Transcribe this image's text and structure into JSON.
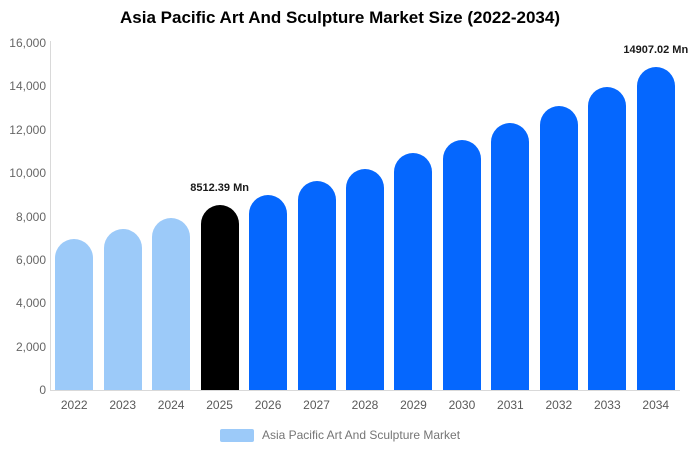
{
  "title": "Asia Pacific Art And Sculpture Market Size (2022-2034)",
  "colors": {
    "light_blue": "#9CCAF9",
    "bright_blue": "#0567FE",
    "highlight_black": "#000000",
    "axis_text": "#666666",
    "legend_text": "#757575",
    "axis_line": "#d9d9d9"
  },
  "chart_data": {
    "type": "bar",
    "title": "Asia Pacific Art And Sculpture Market Size (2022-2034)",
    "xlabel": "",
    "ylabel": "",
    "ylim": [
      0,
      16000
    ],
    "grid": false,
    "legend_position": "bottom",
    "categories": [
      "2022",
      "2023",
      "2024",
      "2025",
      "2026",
      "2027",
      "2028",
      "2029",
      "2030",
      "2031",
      "2032",
      "2033",
      "2034"
    ],
    "values": [
      6980,
      7440,
      7910,
      8512.39,
      8970,
      9620,
      10170,
      10910,
      11510,
      12300,
      13090,
      13970,
      14907.02
    ],
    "bar_colors": [
      "#9CCAF9",
      "#9CCAF9",
      "#9CCAF9",
      "#000000",
      "#0567FE",
      "#0567FE",
      "#0567FE",
      "#0567FE",
      "#0567FE",
      "#0567FE",
      "#0567FE",
      "#0567FE",
      "#0567FE"
    ],
    "y_tick_labels": [
      "0",
      "2,000",
      "4,000",
      "6,000",
      "8,000",
      "10,000",
      "12,000",
      "14,000",
      "16,000"
    ],
    "data_labels": [
      {
        "category": "2025",
        "text": "8512.39 Mn"
      },
      {
        "category": "2034",
        "text": "14907.02 Mn"
      }
    ]
  },
  "legend": {
    "label": "Asia Pacific Art And Sculpture Market",
    "swatch_color": "#9CCAF9"
  }
}
